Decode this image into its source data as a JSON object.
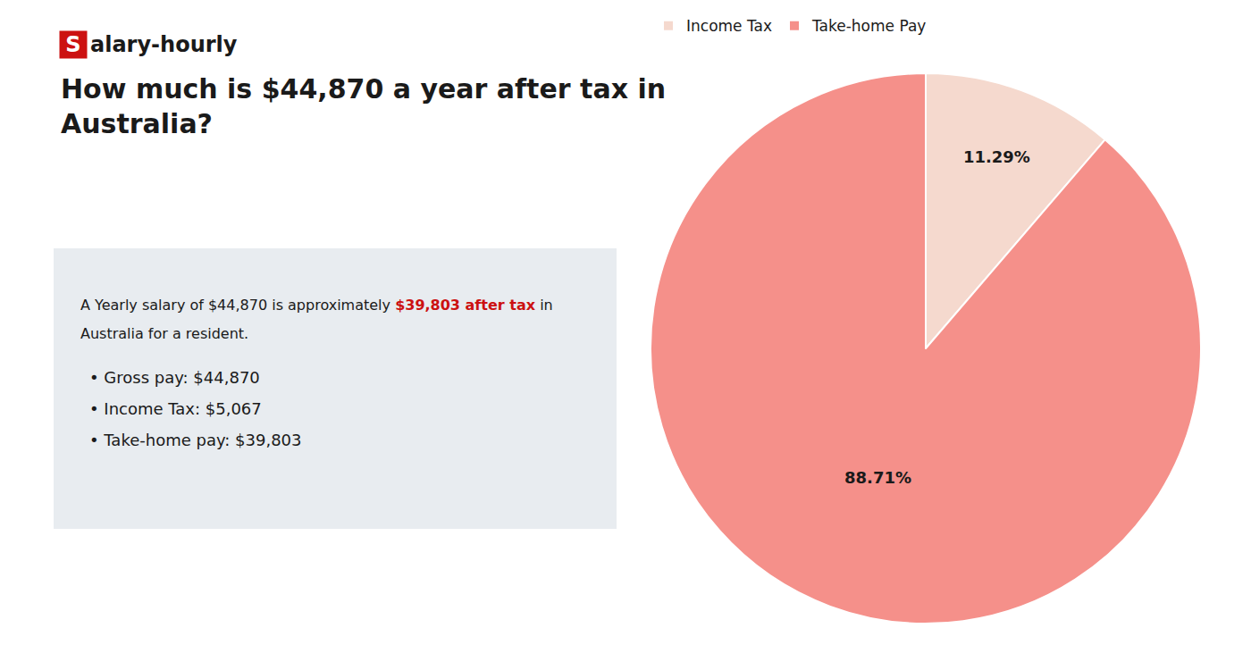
{
  "chart_data": {
    "type": "pie",
    "title": "How much is $44,870 a year after tax in\nAustralia?",
    "categories": [
      "Income Tax",
      "Take-home Pay"
    ],
    "values": [
      11.29,
      88.71
    ],
    "value_labels": [
      "11.29%",
      "88.71%"
    ],
    "data_labels": true,
    "colors": [
      "#f5d9ce",
      "#f5908a"
    ],
    "legend": "top",
    "annotations": [
      [
        {
          "text": "S",
          "color": "#cc1111"
        },
        "alary-hourly"
      ],
      [
        "A Yearly salary of $44,870 is approximately",
        {
          "text": "$39,803 after tax",
          "color": "#cc1111"
        },
        "in"
      ],
      [
        "Australia for a resident."
      ],
      [
        "•",
        "Gross pay: $44,870"
      ],
      [
        "•",
        "Income Tax: $5,067"
      ],
      [
        "•",
        "Take-home pay: $39,803"
      ]
    ]
  }
}
